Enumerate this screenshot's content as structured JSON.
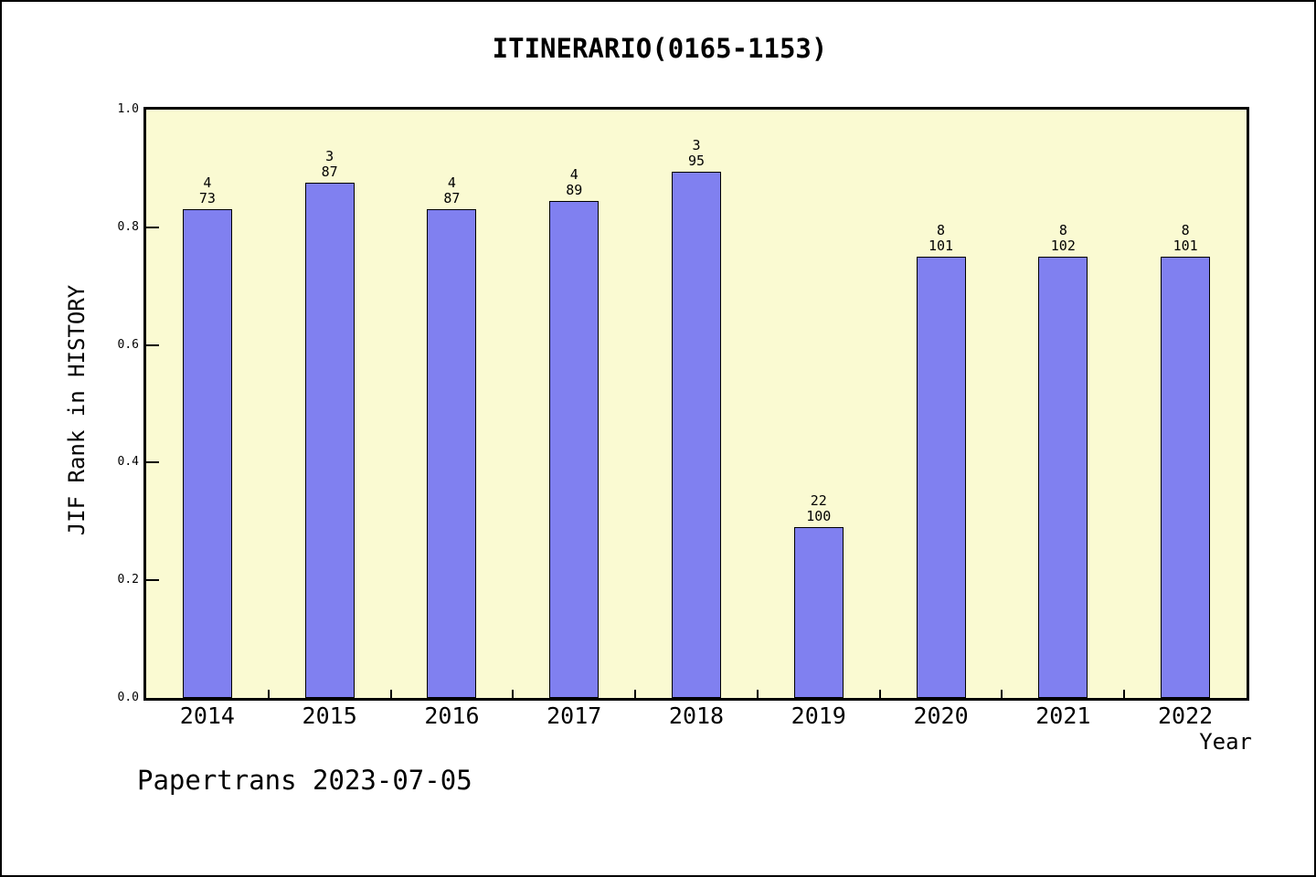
{
  "title": "ITINERARIO(0165-1153)",
  "footer": "Papertrans 2023-07-05",
  "colors": {
    "figure_bg": "#FFFFFF",
    "figure_border": "#000000",
    "plot_bg": "#FAFAD2",
    "bar_fill": "#8080F0",
    "bar_border": "#000000",
    "axis_color": "#000000",
    "text_color": "#000000"
  },
  "chart_data": {
    "type": "bar",
    "title": "ITINERARIO(0165-1153)",
    "xlabel": "Year",
    "ylabel": "JIF Rank in HISTORY",
    "categories": [
      "2014",
      "2015",
      "2016",
      "2017",
      "2018",
      "2019",
      "2020",
      "2021",
      "2022"
    ],
    "values": [
      0.83,
      0.875,
      0.83,
      0.845,
      0.895,
      0.29,
      0.75,
      0.75,
      0.75
    ],
    "bar_top_labels": [
      {
        "rank": "4",
        "total": "73"
      },
      {
        "rank": "3",
        "total": "87"
      },
      {
        "rank": "4",
        "total": "87"
      },
      {
        "rank": "4",
        "total": "89"
      },
      {
        "rank": "3",
        "total": "95"
      },
      {
        "rank": "22",
        "total": "100"
      },
      {
        "rank": "8",
        "total": "101"
      },
      {
        "rank": "8",
        "total": "102"
      },
      {
        "rank": "8",
        "total": "101"
      }
    ],
    "ylim": [
      0.0,
      1.0
    ],
    "yticks": [
      0.0,
      0.2,
      0.4,
      0.6,
      0.8,
      1.0
    ],
    "ytick_labels": [
      "0.0",
      "0.2",
      "0.4",
      "0.6",
      "0.8",
      "1.0"
    ],
    "grid": false,
    "legend": null
  }
}
